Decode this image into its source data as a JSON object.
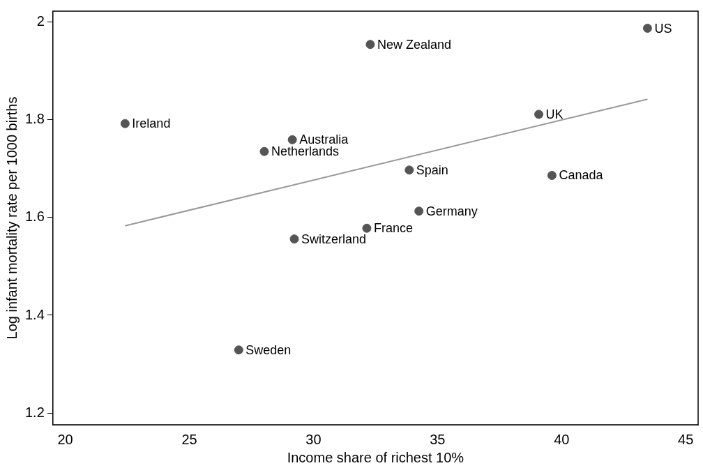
{
  "chart_data": {
    "type": "scatter",
    "xlabel": "Income share of richest 10%",
    "ylabel": "Log infant mortality rate per 1000 births",
    "xlim": [
      19.5,
      45.5
    ],
    "xticks": [
      20,
      25,
      30,
      35,
      40,
      45
    ],
    "ylim": [
      1.176,
      2.022
    ],
    "yticks": [
      1.2,
      1.4,
      1.6,
      1.8,
      2
    ],
    "grid": false,
    "legend": false,
    "marker": "circle",
    "series": [
      {
        "color": "#555555",
        "x": [
          43.46,
          32.29,
          22.41,
          39.08,
          29.15,
          28.02,
          33.86,
          39.61,
          34.25,
          32.15,
          29.23,
          26.99
        ],
        "values": [
          1.987,
          1.954,
          1.792,
          1.811,
          1.759,
          1.735,
          1.697,
          1.686,
          1.613,
          1.578,
          1.556,
          1.329
        ]
      },
      {
        "type": "line",
        "color": "#999999",
        "marker": "none",
        "x": [
          22.41,
          43.46
        ],
        "values": [
          1.583,
          1.842
        ]
      }
    ],
    "annotations": [
      {
        "text": "US",
        "x": 43.46,
        "y": 1.987
      },
      {
        "text": "New Zealand",
        "x": 32.29,
        "y": 1.954
      },
      {
        "text": "Ireland",
        "x": 22.41,
        "y": 1.792
      },
      {
        "text": "UK",
        "x": 39.08,
        "y": 1.811
      },
      {
        "text": "Australia",
        "x": 29.15,
        "y": 1.759
      },
      {
        "text": "Netherlands",
        "x": 28.02,
        "y": 1.735
      },
      {
        "text": "Spain",
        "x": 33.86,
        "y": 1.697
      },
      {
        "text": "Canada",
        "x": 39.61,
        "y": 1.686
      },
      {
        "text": "Germany",
        "x": 34.25,
        "y": 1.613
      },
      {
        "text": "France",
        "x": 32.15,
        "y": 1.578
      },
      {
        "text": "Switzerland",
        "x": 29.23,
        "y": 1.556
      },
      {
        "text": "Sweden",
        "x": 26.99,
        "y": 1.329
      }
    ]
  }
}
